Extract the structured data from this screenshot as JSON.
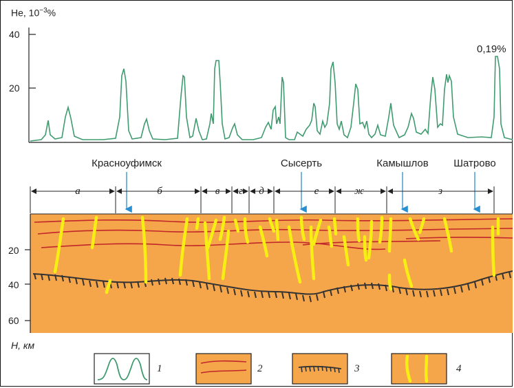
{
  "top_chart": {
    "y_label": "He, 10",
    "y_label_exp": "−3",
    "y_label_suffix": "%",
    "y_ticks": [
      "40",
      "20"
    ],
    "peak_note": "0,19%"
  },
  "profile": {
    "cities": [
      {
        "name": "Красноуфимск"
      },
      {
        "name": "Сысерть"
      },
      {
        "name": "Камышлов"
      },
      {
        "name": "Шатрово"
      }
    ],
    "segments": [
      "а",
      "б",
      "в",
      "г",
      "д",
      "е",
      "ж",
      "з"
    ],
    "depth_ticks": [
      "20",
      "40",
      "60"
    ],
    "depth_label": "H, км"
  },
  "legend": {
    "items": [
      {
        "num": "1"
      },
      {
        "num": "2"
      },
      {
        "num": "3"
      },
      {
        "num": "4"
      }
    ]
  },
  "colors": {
    "helium_line": "#3f9a6f",
    "crust": "#f5a54a",
    "red_lines": "#c0262a",
    "faults": "#f7ee14",
    "moho": "#333333",
    "arrows": "#2a8fd0"
  },
  "icons": {
    "arrow": "arrow-down-icon"
  }
}
